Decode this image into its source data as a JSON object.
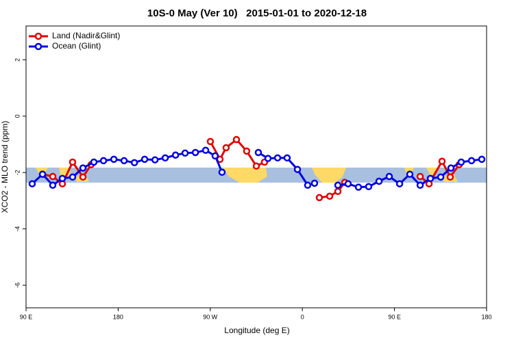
{
  "chart_data": {
    "type": "line",
    "title": "10S-0 May (Ver 10)   2015-01-01 to 2020-12-18",
    "xlabel": "Longitude (deg E)",
    "ylabel": "XCO2 - MLO trend (ppm)",
    "xlim": [
      90,
      540
    ],
    "ylim": [
      -6.8,
      3.2
    ],
    "xticks": [
      {
        "value": 90,
        "label": "90 E"
      },
      180,
      {
        "value": 270,
        "label": "90 W"
      },
      {
        "value": 360,
        "label": "0"
      },
      {
        "value": 450,
        "label": "90 E"
      },
      {
        "value": 540,
        "label": "180"
      }
    ],
    "yticks": [
      -6,
      -4,
      -2,
      0,
      2
    ],
    "legend": "upper left",
    "series": [
      {
        "name": "Land (Nadir&Glint)",
        "color": "#e00000",
        "x": [
          106.1,
          116.1,
          125.5,
          135.5,
          145.6,
          153.6,
          null,
          270.1,
          279.5,
          285.5,
          295.6,
          305.6,
          315.0,
          323.0,
          null,
          376.6,
          386.7,
          394.7,
          401.4,
          null,
          475.1,
          483.8,
          496.5,
          504.5,
          513.2
        ],
        "values": [
          -2.06,
          -2.14,
          -2.4,
          -1.63,
          -2.16,
          -1.72,
          null,
          -0.9,
          -1.53,
          -1.12,
          -0.83,
          -1.24,
          -1.77,
          -1.63,
          null,
          -2.89,
          -2.84,
          -2.67,
          -2.35,
          null,
          -2.14,
          -2.4,
          -1.6,
          -2.16,
          -1.72
        ]
      },
      {
        "name": "Ocean (Glint)",
        "color": "#0000e0",
        "x": [
          96.0,
          106.1,
          116.1,
          125.5,
          135.5,
          145.6,
          156.3,
          165.7,
          175.8,
          185.8,
          195.9,
          205.9,
          216.0,
          226.0,
          236.1,
          245.4,
          255.5,
          265.5,
          274.8,
          281.5,
          null,
          317.0,
          326.4,
          335.8,
          345.1,
          355.2,
          365.2,
          371.9,
          null,
          394.7,
          404.7,
          414.8,
          424.8,
          434.9,
          444.9,
          455.0,
          465.0,
          475.1,
          485.1,
          495.2,
          505.2,
          515.2,
          525.3,
          535.3
        ],
        "values": [
          -2.4,
          -2.06,
          -2.45,
          -2.21,
          -2.16,
          -1.84,
          -1.63,
          -1.58,
          -1.53,
          -1.58,
          -1.65,
          -1.53,
          -1.55,
          -1.48,
          -1.38,
          -1.31,
          -1.29,
          -1.21,
          -1.41,
          -1.99,
          null,
          -1.29,
          -1.5,
          -1.48,
          -1.48,
          -1.89,
          -2.45,
          -2.38,
          null,
          -2.45,
          -2.4,
          -2.52,
          -2.5,
          -2.31,
          -2.14,
          -2.4,
          -2.06,
          -2.45,
          -2.21,
          -2.16,
          -1.84,
          -1.63,
          -1.58,
          -1.53
        ]
      }
    ]
  }
}
